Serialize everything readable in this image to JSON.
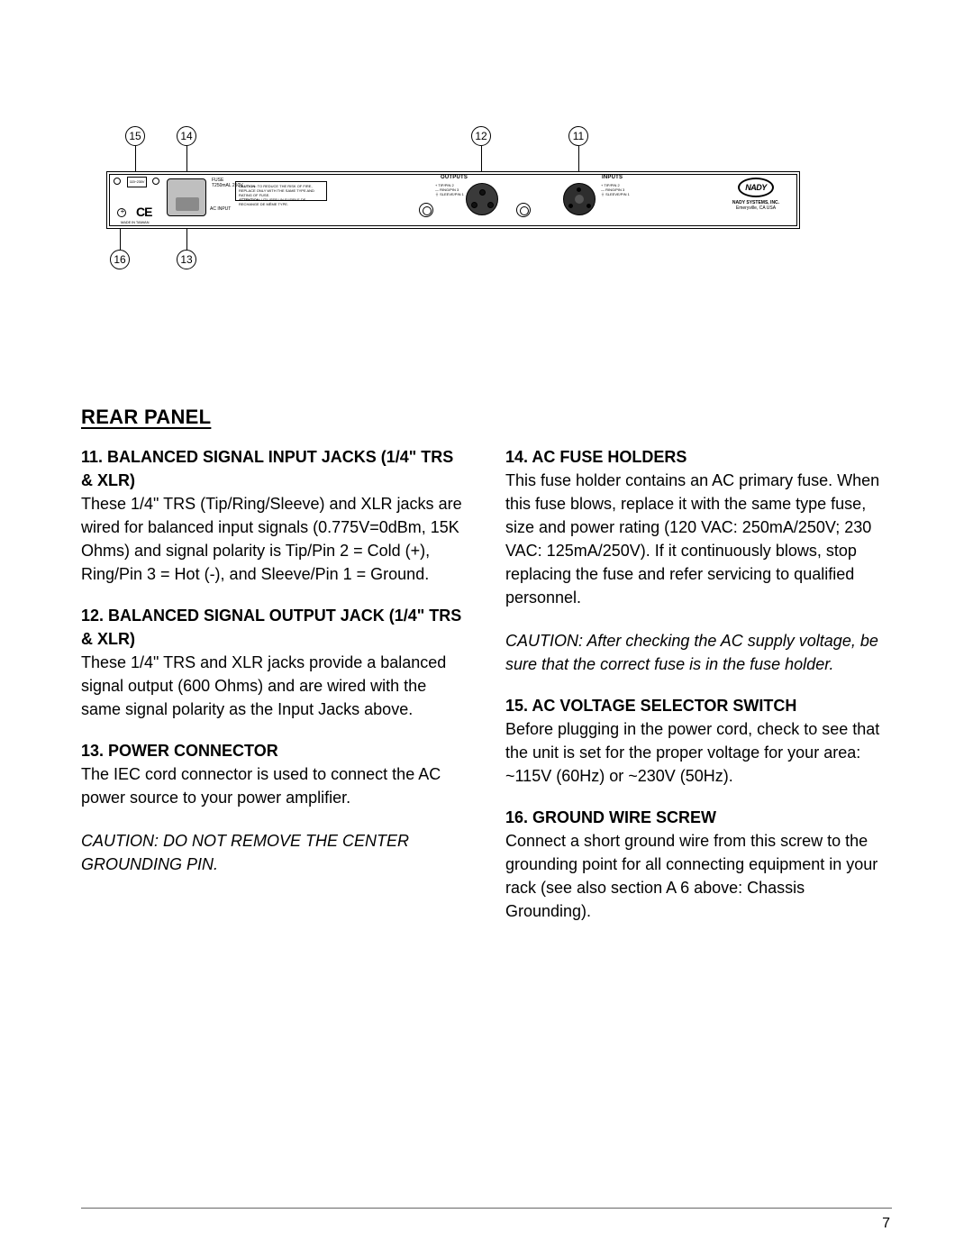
{
  "diagram": {
    "callouts": {
      "c15": "15",
      "c14": "14",
      "c12": "12",
      "c11": "11",
      "c16": "16",
      "c13": "13"
    },
    "panel": {
      "voltage_switch": "115~230V",
      "fuse_label_line1": "FUSE",
      "fuse_label_line2": "T250mAL 250V",
      "ac_input": "AC INPUT",
      "ce": "CE",
      "made_in": "MADE IN TAIWAN",
      "caution_bold": "CAUTION:",
      "caution_text": "TO REDUCE THE RISK OF FIRE, REPLACE ONLY WITH THE SAME TYPE AND RATING OF FUSE.",
      "attention_bold": "ATTENTION:",
      "attention_text": "UTILISER UN FUSIBLE DE RECHANGE DE MÊME TYPE.",
      "outputs_label": "OUTPUTS",
      "inputs_label": "INPUTS",
      "pin_legend": "+ TIP/PIN 2\n— RING/PIN 3\n⏚ SLEEVE/PIN 1",
      "logo_text": "NADY",
      "logo_company": "NADY SYSTEMS, INC.",
      "logo_location": "Emeryville, CA USA"
    }
  },
  "title": "REAR PANEL",
  "left": [
    {
      "title": "11. BALANCED SIGNAL INPUT JACKS (1/4\" TRS & XLR)",
      "body": "These 1/4\" TRS (Tip/Ring/Sleeve) and XLR jacks are wired for balanced input signals (0.775V=0dBm, 15K Ohms) and signal polarity is Tip/Pin 2 = Cold (+), Ring/Pin 3 = Hot (-), and Sleeve/Pin 1 = Ground."
    },
    {
      "title": "12. BALANCED SIGNAL OUTPUT JACK (1/4\" TRS & XLR)",
      "body": "These 1/4\" TRS and XLR jacks provide a balanced signal output (600 Ohms) and are wired with the same signal polarity as the Input Jacks above."
    },
    {
      "title": "13. POWER CONNECTOR",
      "body": "The IEC cord connector is used to connect the AC power source to your power amplifier."
    }
  ],
  "left_caution": "CAUTION: DO NOT REMOVE THE CENTER GROUNDING PIN.",
  "right": [
    {
      "title": "14. AC FUSE HOLDERS",
      "body": "This fuse holder contains an AC primary fuse. When this fuse blows, replace it with the same type fuse, size and power rating (120 VAC: 250mA/250V; 230 VAC: 125mA/250V). If it continuously blows, stop replacing the fuse and refer servicing to qualified personnel."
    }
  ],
  "right_caution": "CAUTION: After checking the AC supply voltage, be sure that the correct fuse is in the fuse holder.",
  "right2": [
    {
      "title": "15. AC VOLTAGE SELECTOR SWITCH",
      "body": "Before plugging in the power cord, check to see that the unit is set for the proper voltage for your area: ~115V (60Hz) or ~230V (50Hz)."
    },
    {
      "title": "16. GROUND WIRE SCREW",
      "body": "Connect a short ground wire from this screw to the grounding point for all connecting equipment in your rack (see also section A 6 above: Chassis Grounding)."
    }
  ],
  "page_number": "7"
}
